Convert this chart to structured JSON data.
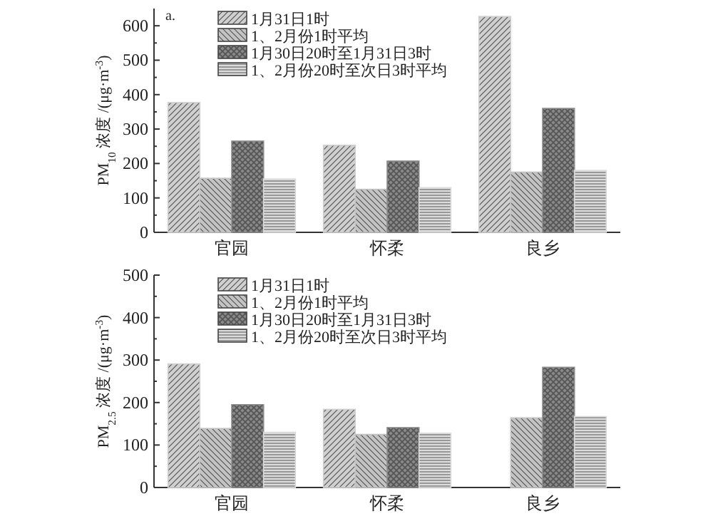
{
  "chart_data": [
    {
      "type": "bar",
      "categories": [
        "官园",
        "怀柔",
        "良乡"
      ],
      "ylabel": "PM$_{10}$ 浓度 /(μg·m$^{-3}$)",
      "ylim": [
        0,
        650
      ],
      "yticks": [
        0,
        100,
        200,
        300,
        400,
        500,
        600
      ],
      "legend": "top",
      "annotations": [
        "a."
      ],
      "series": [
        {
          "name": "1月31日1时",
          "color": "#d0d0d0",
          "values": [
            377,
            253,
            627
          ]
        },
        {
          "name": "1、2月份1时平均",
          "color": "#c4c4c4",
          "values": [
            157,
            125,
            175
          ]
        },
        {
          "name": "1月30日20时至1月31日3时",
          "color": "#8a8a8a",
          "values": [
            265,
            207,
            360
          ]
        },
        {
          "name": "1、2月份20时至次日3时平均",
          "color": "#dcdcdc",
          "values": [
            155,
            130,
            180
          ]
        }
      ]
    },
    {
      "type": "bar",
      "categories": [
        "官园",
        "怀柔",
        "良乡"
      ],
      "ylabel": "PM$_{2.5}$ 浓度 /(μg·m$^{-3}$)",
      "ylim": [
        0,
        500
      ],
      "yticks": [
        0,
        100,
        200,
        300,
        400,
        500
      ],
      "legend": "top",
      "series": [
        {
          "name": "1月31日1时",
          "color": "#d0d0d0",
          "values": [
            291,
            184,
            null
          ]
        },
        {
          "name": "1、2月份1时平均",
          "color": "#c4c4c4",
          "values": [
            139,
            125,
            164
          ]
        },
        {
          "name": "1月30日20时至1月31日3时",
          "color": "#8a8a8a",
          "values": [
            195,
            141,
            283
          ]
        },
        {
          "name": "1、2月份20时至次日3时平均",
          "color": "#dcdcdc",
          "values": [
            130,
            128,
            167
          ]
        }
      ]
    }
  ]
}
